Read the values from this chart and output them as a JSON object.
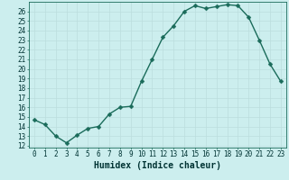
{
  "title": "",
  "xlabel": "Humidex (Indice chaleur)",
  "ylabel": "",
  "x_values": [
    0,
    1,
    2,
    3,
    4,
    5,
    6,
    7,
    8,
    9,
    10,
    11,
    12,
    13,
    14,
    15,
    16,
    17,
    18,
    19,
    20,
    21,
    22,
    23
  ],
  "y_values": [
    14.7,
    14.2,
    13.0,
    12.3,
    13.1,
    13.8,
    14.0,
    15.3,
    16.0,
    16.1,
    18.7,
    21.0,
    23.3,
    24.5,
    26.0,
    26.6,
    26.3,
    26.5,
    26.7,
    26.6,
    25.4,
    23.0,
    20.5,
    18.7
  ],
  "line_color": "#1a6b5a",
  "marker": "D",
  "marker_size": 2.5,
  "bg_color": "#cceeee",
  "grid_color": "#bbdddd",
  "ylim_min": 11.8,
  "ylim_max": 27.0,
  "yticks": [
    12,
    13,
    14,
    15,
    16,
    17,
    18,
    19,
    20,
    21,
    22,
    23,
    24,
    25,
    26
  ],
  "xticks": [
    0,
    1,
    2,
    3,
    4,
    5,
    6,
    7,
    8,
    9,
    10,
    11,
    12,
    13,
    14,
    15,
    16,
    17,
    18,
    19,
    20,
    21,
    22,
    23
  ],
  "tick_fontsize": 5.5,
  "xlabel_fontsize": 7,
  "label_color": "#003333",
  "line_width": 1.0
}
